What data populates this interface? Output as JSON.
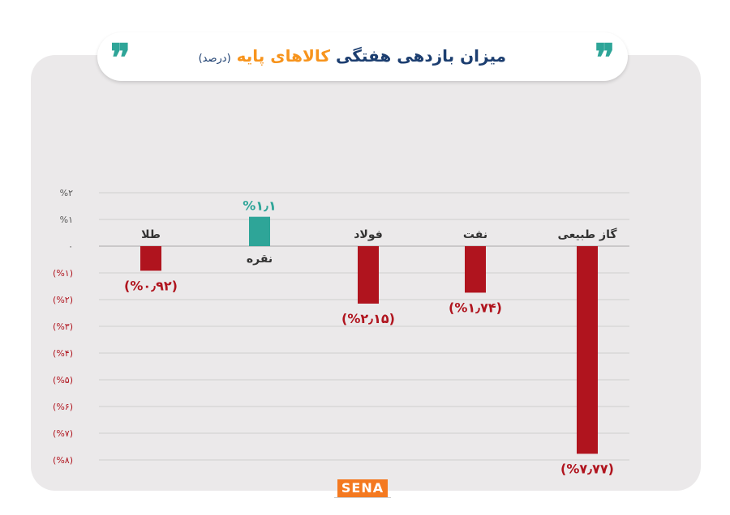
{
  "header": {
    "title_main": "میزان بازدهی هفتگی",
    "title_highlight": "کالاهای پایه",
    "title_unit": "(درصد)",
    "quote_glyph": "❞",
    "colors": {
      "accent": "#2ea598",
      "title": "#1c3e70",
      "highlight": "#f7941d"
    }
  },
  "brand": {
    "logo_text": "SENA",
    "color": "#f47920"
  },
  "chart_data": {
    "type": "bar",
    "categories": [
      "طلا",
      "نقره",
      "فولاد",
      "نفت",
      "گاز طبیعی"
    ],
    "values": [
      -0.92,
      1.1,
      -2.15,
      -1.74,
      -7.77
    ],
    "value_labels": [
      "(%۰٫۹۲)",
      "%۱٫۱",
      "(%۲٫۱۵)",
      "(%۱٫۷۴)",
      "(%۷٫۷۷)"
    ],
    "ylim": [
      -8,
      2
    ],
    "y_ticks": [
      2,
      1,
      0,
      -1,
      -2,
      -3,
      -4,
      -5,
      -6,
      -7,
      -8
    ],
    "y_tick_labels": [
      "%۲",
      "%۱",
      "۰",
      "(%۱)",
      "(%۲)",
      "(%۳)",
      "(%۴)",
      "(%۵)",
      "(%۶)",
      "(%۷)",
      "(%۸)"
    ],
    "grid": true,
    "colors": {
      "positive": "#2ea598",
      "negative": "#b0141e",
      "tick_positive": "#555555",
      "tick_negative": "#b0141e"
    }
  }
}
